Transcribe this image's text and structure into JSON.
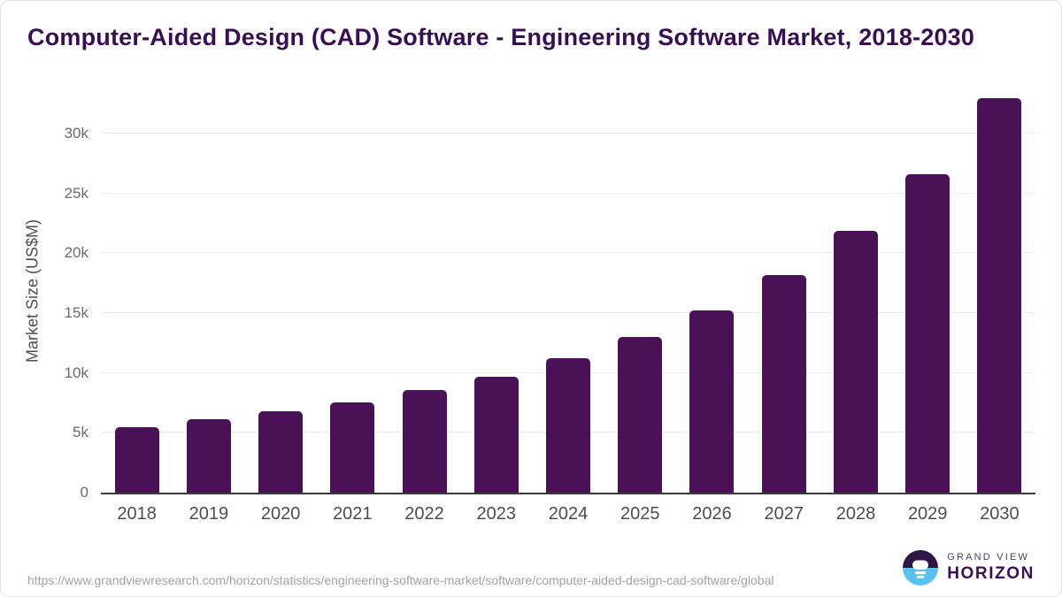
{
  "title": "Computer-Aided Design (CAD) Software - Engineering Software Market, 2018-2030",
  "chart_data": {
    "type": "bar",
    "title": "Computer-Aided Design (CAD) Software - Engineering Software Market, 2018-2030",
    "xlabel": "",
    "ylabel": "Market Size (US$M)",
    "categories": [
      "2018",
      "2019",
      "2020",
      "2021",
      "2022",
      "2023",
      "2024",
      "2025",
      "2026",
      "2027",
      "2028",
      "2029",
      "2030"
    ],
    "values": [
      5450,
      6150,
      6800,
      7550,
      8550,
      9700,
      11200,
      13000,
      15200,
      18150,
      21850,
      26600,
      33000
    ],
    "unit": "US$M",
    "ylim": [
      0,
      34000
    ],
    "yticks": [
      {
        "label": "0",
        "value": 0
      },
      {
        "label": "5k",
        "value": 5000
      },
      {
        "label": "10k",
        "value": 10000
      },
      {
        "label": "15k",
        "value": 15000
      },
      {
        "label": "20k",
        "value": 20000
      },
      {
        "label": "25k",
        "value": 25000
      },
      {
        "label": "30k",
        "value": 30000
      }
    ],
    "grid": "horizontal",
    "legend_position": "none",
    "bar_color": "#4a1157"
  },
  "colors": {
    "title": "#38104f",
    "bar": "#4a1157",
    "gridline": "#eaeaea",
    "axis_line": "#3a3a3e",
    "tick_label": "#6b6b6b",
    "x_label": "#4d4d4d",
    "source_text": "#a2a2a2",
    "logo_dark": "#2e1745",
    "logo_blue": "#5ac1ee"
  },
  "footer": {
    "source_url": "https://www.grandviewresearch.com/horizon/statistics/engineering-software-market/software/computer-aided-design-cad-software/global",
    "logo": {
      "brand_top": "GRAND VIEW",
      "brand_bottom": "HORIZON"
    }
  }
}
